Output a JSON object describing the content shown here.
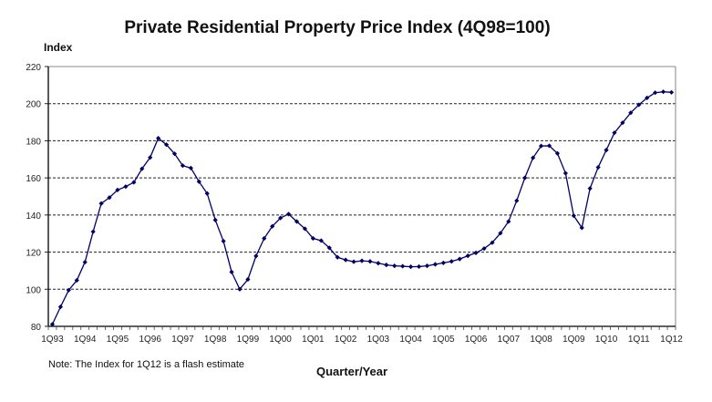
{
  "chart_data": {
    "type": "line",
    "title": "Private Residential Property Price Index (4Q98=100)",
    "ylabel": "Index",
    "xlabel": "Quarter/Year",
    "note": "Note: The Index for 1Q12 is a flash estimate",
    "ylim": [
      80,
      220
    ],
    "yticks": [
      80,
      100,
      120,
      140,
      160,
      180,
      200,
      220
    ],
    "grid": "horizontal dashed",
    "legend": "none",
    "line_color": "#000066",
    "x_tick_labels": [
      "1Q93",
      "1Q94",
      "1Q95",
      "1Q96",
      "1Q97",
      "1Q98",
      "1Q99",
      "1Q00",
      "1Q01",
      "1Q02",
      "1Q03",
      "1Q04",
      "1Q05",
      "1Q06",
      "1Q07",
      "1Q08",
      "1Q09",
      "1Q10",
      "1Q11",
      "1Q12"
    ],
    "x": [
      "1Q93",
      "2Q93",
      "3Q93",
      "4Q93",
      "1Q94",
      "2Q94",
      "3Q94",
      "4Q94",
      "1Q95",
      "2Q95",
      "3Q95",
      "4Q95",
      "1Q96",
      "2Q96",
      "3Q96",
      "4Q96",
      "1Q97",
      "2Q97",
      "3Q97",
      "4Q97",
      "1Q98",
      "2Q98",
      "3Q98",
      "4Q98",
      "1Q99",
      "2Q99",
      "3Q99",
      "4Q99",
      "1Q00",
      "2Q00",
      "3Q00",
      "4Q00",
      "1Q01",
      "2Q01",
      "3Q01",
      "4Q01",
      "1Q02",
      "2Q02",
      "3Q02",
      "4Q02",
      "1Q03",
      "2Q03",
      "3Q03",
      "4Q03",
      "1Q04",
      "2Q04",
      "3Q04",
      "4Q04",
      "1Q05",
      "2Q05",
      "3Q05",
      "4Q05",
      "1Q06",
      "2Q06",
      "3Q06",
      "4Q06",
      "1Q07",
      "2Q07",
      "3Q07",
      "4Q07",
      "1Q08",
      "2Q08",
      "3Q08",
      "4Q08",
      "1Q09",
      "2Q09",
      "3Q09",
      "4Q09",
      "1Q10",
      "2Q10",
      "3Q10",
      "4Q10",
      "1Q11",
      "2Q11",
      "3Q11",
      "4Q11",
      "1Q12"
    ],
    "series": [
      {
        "name": "Private Residential Property Price Index",
        "values": [
          81.1,
          90.5,
          99.5,
          104.8,
          114.6,
          131.0,
          146.2,
          149.4,
          153.5,
          155.3,
          157.6,
          164.9,
          171.0,
          181.4,
          177.9,
          173.0,
          166.6,
          165.3,
          158.0,
          151.6,
          137.3,
          125.9,
          109.3,
          100.0,
          105.3,
          117.9,
          127.4,
          133.9,
          138.4,
          140.5,
          136.5,
          132.6,
          127.4,
          126.2,
          122.3,
          117.2,
          115.8,
          114.8,
          115.3,
          115.0,
          114.0,
          113.1,
          112.6,
          112.4,
          112.1,
          112.2,
          112.6,
          113.4,
          114.2,
          115.0,
          116.3,
          118.0,
          119.6,
          121.9,
          125.1,
          130.2,
          136.5,
          147.7,
          160.0,
          170.8,
          177.2,
          177.3,
          173.2,
          162.5,
          139.6,
          133.1,
          154.3,
          165.7,
          175.0,
          184.3,
          189.7,
          195.1,
          199.4,
          203.1,
          205.9,
          206.4,
          206.1
        ]
      }
    ]
  }
}
